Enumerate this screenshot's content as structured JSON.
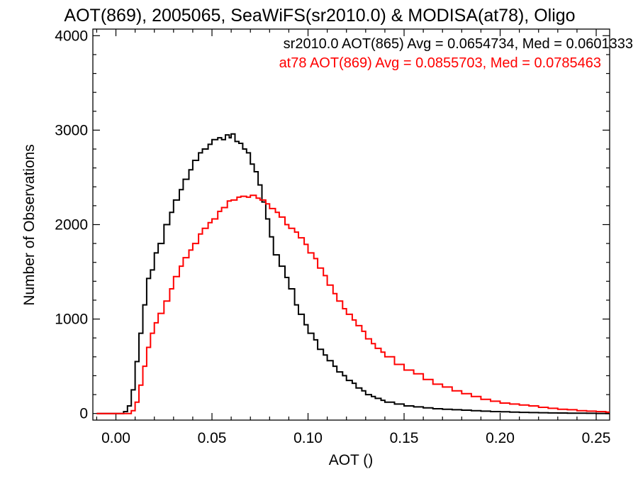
{
  "chart_data": {
    "type": "line",
    "title": "AOT(869), 2005065, SeaWiFS(sr2010.0) & MODISA(at78), Oligo",
    "xlabel": "AOT ()",
    "ylabel": "Number of Observations",
    "xlim": [
      -0.012,
      0.257
    ],
    "ylim": [
      -70,
      4070
    ],
    "xticks": [
      0.0,
      0.05,
      0.1,
      0.15,
      0.2,
      0.25
    ],
    "xtick_labels": [
      "0.00",
      "0.05",
      "0.10",
      "0.15",
      "0.20",
      "0.25"
    ],
    "yticks": [
      0,
      1000,
      2000,
      3000,
      4000
    ],
    "ytick_labels": [
      "0",
      "1000",
      "2000",
      "3000",
      "4000"
    ],
    "grid": false,
    "legend_position": "top-right",
    "series": [
      {
        "name": "sr2010.0 AOT(865) Avg = 0.0654734, Med = 0.0601333",
        "color": "#000000",
        "step": true,
        "x": [
          -0.01,
          0.0,
          0.004,
          0.006,
          0.008,
          0.01,
          0.012,
          0.014,
          0.016,
          0.018,
          0.02,
          0.022,
          0.025,
          0.028,
          0.03,
          0.033,
          0.035,
          0.038,
          0.04,
          0.043,
          0.045,
          0.048,
          0.05,
          0.053,
          0.055,
          0.057,
          0.059,
          0.06,
          0.062,
          0.064,
          0.066,
          0.068,
          0.07,
          0.072,
          0.074,
          0.076,
          0.078,
          0.08,
          0.082,
          0.085,
          0.088,
          0.09,
          0.093,
          0.095,
          0.098,
          0.1,
          0.103,
          0.105,
          0.108,
          0.11,
          0.113,
          0.115,
          0.118,
          0.12,
          0.123,
          0.125,
          0.128,
          0.13,
          0.133,
          0.135,
          0.138,
          0.14,
          0.145,
          0.15,
          0.155,
          0.16,
          0.165,
          0.17,
          0.175,
          0.18,
          0.185,
          0.19,
          0.195,
          0.2,
          0.205,
          0.21,
          0.215,
          0.22,
          0.225,
          0.23,
          0.235,
          0.24,
          0.245,
          0.25,
          0.255
        ],
        "y": [
          0,
          0,
          20,
          80,
          250,
          550,
          850,
          1150,
          1430,
          1520,
          1700,
          1800,
          2000,
          2130,
          2260,
          2370,
          2480,
          2580,
          2680,
          2760,
          2800,
          2850,
          2900,
          2920,
          2900,
          2950,
          2920,
          2960,
          2880,
          2860,
          2800,
          2760,
          2640,
          2560,
          2420,
          2240,
          2060,
          1870,
          1680,
          1560,
          1440,
          1320,
          1150,
          1050,
          940,
          850,
          780,
          680,
          620,
          560,
          500,
          440,
          400,
          350,
          320,
          270,
          240,
          200,
          180,
          160,
          140,
          120,
          100,
          80,
          70,
          60,
          50,
          45,
          40,
          35,
          30,
          25,
          20,
          18,
          15,
          12,
          10,
          8,
          6,
          5,
          4,
          3,
          2,
          1,
          0
        ]
      },
      {
        "name": "at78 AOT(869) Avg = 0.0855703, Med = 0.0785463",
        "color": "#ff0000",
        "step": true,
        "x": [
          -0.01,
          0.005,
          0.008,
          0.01,
          0.012,
          0.014,
          0.016,
          0.018,
          0.02,
          0.022,
          0.025,
          0.028,
          0.03,
          0.033,
          0.035,
          0.038,
          0.04,
          0.043,
          0.045,
          0.048,
          0.05,
          0.053,
          0.055,
          0.058,
          0.06,
          0.063,
          0.065,
          0.068,
          0.07,
          0.073,
          0.075,
          0.078,
          0.08,
          0.083,
          0.085,
          0.088,
          0.09,
          0.093,
          0.095,
          0.098,
          0.1,
          0.103,
          0.105,
          0.108,
          0.11,
          0.113,
          0.115,
          0.118,
          0.12,
          0.123,
          0.125,
          0.128,
          0.13,
          0.133,
          0.135,
          0.138,
          0.14,
          0.145,
          0.15,
          0.155,
          0.16,
          0.165,
          0.17,
          0.175,
          0.18,
          0.185,
          0.19,
          0.195,
          0.2,
          0.205,
          0.21,
          0.215,
          0.22,
          0.225,
          0.23,
          0.235,
          0.24,
          0.245,
          0.25,
          0.255
        ],
        "y": [
          0,
          0,
          30,
          120,
          300,
          500,
          700,
          850,
          960,
          1060,
          1190,
          1320,
          1450,
          1560,
          1650,
          1730,
          1800,
          1900,
          1960,
          2020,
          2060,
          2140,
          2180,
          2250,
          2260,
          2290,
          2300,
          2290,
          2310,
          2280,
          2260,
          2220,
          2170,
          2130,
          2080,
          2000,
          1960,
          1920,
          1860,
          1790,
          1700,
          1640,
          1540,
          1460,
          1360,
          1270,
          1190,
          1110,
          1050,
          990,
          930,
          870,
          790,
          740,
          690,
          650,
          600,
          520,
          460,
          420,
          360,
          310,
          280,
          240,
          210,
          180,
          150,
          130,
          110,
          100,
          90,
          80,
          65,
          55,
          45,
          40,
          30,
          25,
          20,
          15
        ]
      }
    ]
  }
}
